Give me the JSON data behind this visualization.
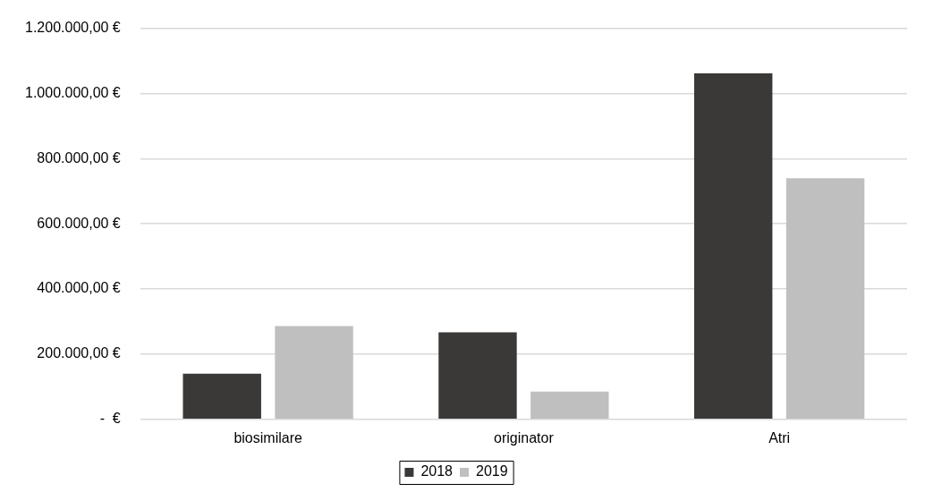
{
  "chart_data": {
    "type": "bar",
    "categories": [
      "biosimilare",
      "originator",
      "Atri"
    ],
    "series": [
      {
        "name": "2018",
        "color": "#3a3937",
        "values": [
          140000,
          267000,
          1062000
        ]
      },
      {
        "name": "2019",
        "color": "#bfbfbf",
        "values": [
          286000,
          85000,
          740000
        ]
      }
    ],
    "ylim": [
      0,
      1200000
    ],
    "yticks": [
      {
        "value": 0,
        "label": "-  €"
      },
      {
        "value": 200000,
        "label": "200.000,00 €"
      },
      {
        "value": 400000,
        "label": "400.000,00 €"
      },
      {
        "value": 600000,
        "label": "600.000,00 €"
      },
      {
        "value": 800000,
        "label": "800.000,00 €"
      },
      {
        "value": 1000000,
        "label": "1.000.000,00 €"
      },
      {
        "value": 1200000,
        "label": "1.200.000,00 €"
      }
    ],
    "grid": "y",
    "legend": "bottom"
  }
}
